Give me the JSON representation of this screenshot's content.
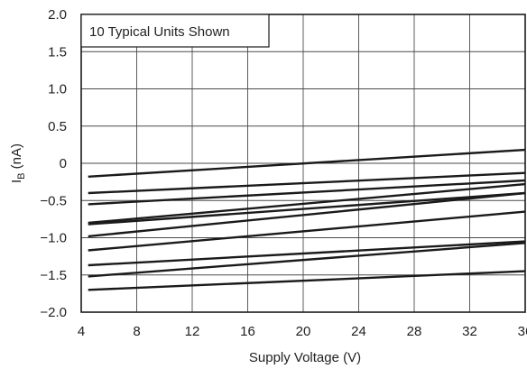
{
  "chart_data": {
    "type": "line",
    "annotation": "10 Typical Units Shown",
    "xlabel": "Supply Voltage (V)",
    "ylabel": {
      "main": "I",
      "sub": "B",
      "unit": " (nA)"
    },
    "xlim": [
      4,
      36
    ],
    "ylim": [
      -2.0,
      2.0
    ],
    "x_ticks": [
      4,
      8,
      12,
      16,
      20,
      24,
      28,
      32,
      36
    ],
    "x_tick_labels": [
      "4",
      "8",
      "12",
      "16",
      "20",
      "24",
      "28",
      "32",
      "36"
    ],
    "y_ticks": [
      2.0,
      1.5,
      1.0,
      0.5,
      0,
      -0.5,
      -1.0,
      -1.5,
      -2.0
    ],
    "y_tick_labels": [
      "2.0",
      "1.5",
      "1.0",
      "0.5",
      "0",
      "−0.5",
      "−1.0",
      "−1.5",
      "−2.0"
    ],
    "grid": true,
    "line_color": "#1a1a1a",
    "grid_color": "#4a4a4a",
    "series": [
      {
        "x": [
          4.5,
          36
        ],
        "y": [
          -0.18,
          0.18
        ]
      },
      {
        "x": [
          4.5,
          36
        ],
        "y": [
          -0.4,
          -0.13
        ]
      },
      {
        "x": [
          4.5,
          36
        ],
        "y": [
          -0.55,
          -0.23
        ]
      },
      {
        "x": [
          4.5,
          36
        ],
        "y": [
          -0.8,
          -0.28
        ]
      },
      {
        "x": [
          4.5,
          36
        ],
        "y": [
          -0.82,
          -0.4
        ]
      },
      {
        "x": [
          4.5,
          36
        ],
        "y": [
          -0.98,
          -0.4
        ]
      },
      {
        "x": [
          4.5,
          36
        ],
        "y": [
          -1.17,
          -0.65
        ]
      },
      {
        "x": [
          4.5,
          36
        ],
        "y": [
          -1.37,
          -1.05
        ]
      },
      {
        "x": [
          4.5,
          36
        ],
        "y": [
          -1.52,
          -1.07
        ]
      },
      {
        "x": [
          4.5,
          36
        ],
        "y": [
          -1.7,
          -1.45
        ]
      }
    ]
  }
}
